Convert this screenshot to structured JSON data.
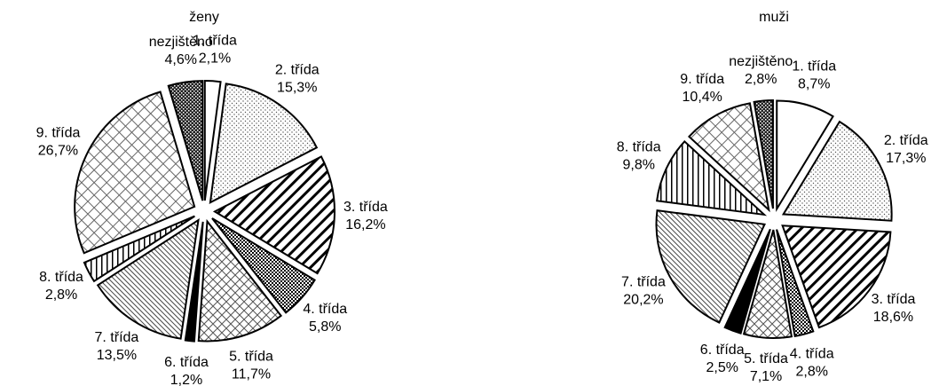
{
  "chart_data": [
    {
      "type": "pie",
      "title": "ženy",
      "categories": [
        "1. třída",
        "2. třída",
        "3. třída",
        "4. třída",
        "5. třída",
        "6. třída",
        "7. třída",
        "8. třída",
        "9. třída",
        "nezjištěno"
      ],
      "values": [
        2.1,
        15.3,
        16.2,
        5.8,
        11.7,
        1.2,
        13.5,
        2.8,
        26.7,
        4.6
      ],
      "value_labels": [
        "2,1%",
        "15,3%",
        "16,2%",
        "5,8%",
        "11,7%",
        "1,2%",
        "13,5%",
        "2,8%",
        "26,7%",
        "4,6%"
      ]
    },
    {
      "type": "pie",
      "title": "muži",
      "categories": [
        "1. třída",
        "2. třída",
        "3. třída",
        "4. třída",
        "5. třída",
        "6. třída",
        "7. třída",
        "8. třída",
        "9. třída",
        "nezjištěno"
      ],
      "values": [
        8.7,
        17.3,
        18.6,
        2.8,
        7.1,
        2.5,
        20.2,
        9.8,
        10.4,
        2.8
      ],
      "value_labels": [
        "8,7%",
        "17,3%",
        "18,6%",
        "2,8%",
        "7,1%",
        "2,5%",
        "20,2%",
        "9,8%",
        "10,4%",
        "2,8%"
      ]
    }
  ]
}
